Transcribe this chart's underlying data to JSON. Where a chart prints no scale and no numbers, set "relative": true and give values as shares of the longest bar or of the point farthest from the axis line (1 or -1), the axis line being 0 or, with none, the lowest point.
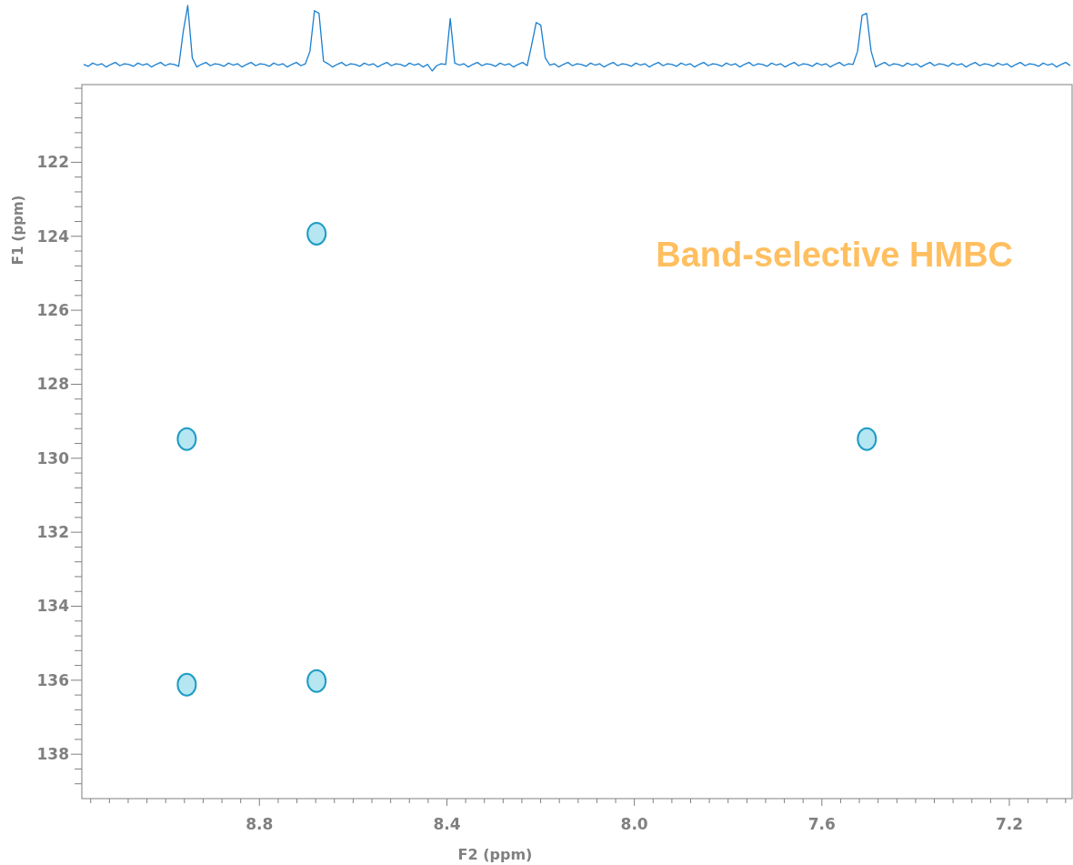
{
  "chart_data": [
    {
      "type": "line",
      "relative": true,
      "marker": "none",
      "line_style": "solid",
      "categories": [
        null,
        null,
        null,
        null,
        null,
        null,
        null,
        null,
        null,
        null,
        null,
        null,
        null,
        null,
        null,
        null,
        null,
        null,
        null,
        null,
        null,
        null,
        null,
        null,
        null,
        null,
        null,
        null,
        null,
        null,
        null,
        null,
        null,
        null,
        null,
        null,
        null,
        null,
        null,
        null,
        null,
        null,
        null,
        null,
        null,
        null,
        null,
        null,
        null,
        null,
        null,
        null,
        null,
        null,
        null,
        null,
        null,
        null,
        null,
        null,
        null,
        null,
        null,
        null,
        null,
        null,
        null,
        null,
        null,
        null,
        null,
        null,
        null,
        null,
        null,
        null,
        null,
        null,
        null,
        null,
        null,
        null,
        null,
        null,
        null,
        null,
        null,
        null,
        null,
        null,
        null,
        null,
        null,
        null,
        null,
        null,
        null,
        null,
        null,
        null,
        null,
        null,
        null,
        null,
        null,
        null,
        null,
        null,
        null,
        null,
        null,
        null,
        null,
        null,
        null,
        null,
        null,
        null,
        null,
        null,
        null,
        null,
        null,
        null,
        null,
        null,
        null,
        null,
        null,
        null,
        null,
        null,
        null,
        null,
        null,
        null,
        null,
        null,
        null,
        null,
        null,
        null,
        null,
        null,
        null,
        null,
        null,
        null,
        null,
        null,
        null,
        null,
        null,
        null,
        null,
        null,
        null,
        null,
        null,
        null,
        null,
        null,
        null,
        null,
        null,
        null,
        null,
        null,
        null,
        null,
        null,
        null,
        null,
        null,
        null,
        null,
        null,
        null,
        null,
        null,
        null,
        null,
        null,
        null,
        null,
        null,
        null,
        null,
        null,
        null,
        null,
        null,
        null,
        null,
        null,
        null,
        null,
        null,
        null,
        null,
        null,
        null,
        null,
        null,
        null,
        null,
        null,
        null,
        null,
        null,
        null,
        null,
        null,
        null,
        null,
        null,
        null,
        null,
        null
      ],
      "series": [
        {
          "color": "#1a7fd0",
          "values": [
            0.1,
            0.07,
            0.12,
            0.09,
            0.11,
            0.06,
            0.1,
            0.13,
            0.08,
            0.11,
            0.1,
            0.07,
            0.12,
            0.09,
            0.11,
            0.06,
            0.1,
            0.13,
            0.08,
            0.11,
            0.1,
            0.07,
            0.6,
            1.0,
            0.2,
            0.06,
            0.1,
            0.13,
            0.08,
            0.11,
            0.1,
            0.07,
            0.12,
            0.09,
            0.11,
            0.06,
            0.1,
            0.13,
            0.08,
            0.11,
            0.1,
            0.07,
            0.12,
            0.09,
            0.11,
            0.06,
            0.1,
            0.13,
            0.08,
            0.11,
            0.3,
            0.92,
            0.88,
            0.15,
            0.11,
            0.06,
            0.1,
            0.13,
            0.08,
            0.11,
            0.1,
            0.07,
            0.12,
            0.09,
            0.11,
            0.06,
            0.1,
            0.13,
            0.08,
            0.11,
            0.1,
            0.07,
            0.12,
            0.09,
            0.11,
            0.06,
            0.1,
            0,
            0.08,
            0.11,
            0.1,
            0.8,
            0.12,
            0.09,
            0.11,
            0.06,
            0.1,
            0.13,
            0.08,
            0.11,
            0.1,
            0.07,
            0.12,
            0.09,
            0.11,
            0.06,
            0.1,
            0.13,
            0.08,
            0.4,
            0.74,
            0.7,
            0.2,
            0.09,
            0.11,
            0.06,
            0.1,
            0.13,
            0.08,
            0.11,
            0.1,
            0.07,
            0.12,
            0.09,
            0.11,
            0.06,
            0.1,
            0.13,
            0.08,
            0.11,
            0.1,
            0.07,
            0.12,
            0.09,
            0.11,
            0.06,
            0.1,
            0.13,
            0.08,
            0.11,
            0.1,
            0.07,
            0.12,
            0.09,
            0.11,
            0.06,
            0.1,
            0.13,
            0.08,
            0.11,
            0.1,
            0.07,
            0.12,
            0.09,
            0.11,
            0.06,
            0.1,
            0.13,
            0.08,
            0.11,
            0.1,
            0.07,
            0.12,
            0.09,
            0.11,
            0.06,
            0.1,
            0.13,
            0.08,
            0.11,
            0.1,
            0.07,
            0.12,
            0.09,
            0.11,
            0.06,
            0.1,
            0.13,
            0.08,
            0.11,
            0.1,
            0.3,
            0.85,
            0.88,
            0.3,
            0.06,
            0.1,
            0.13,
            0.08,
            0.11,
            0.1,
            0.07,
            0.12,
            0.09,
            0.11,
            0.06,
            0.1,
            0.13,
            0.08,
            0.11,
            0.1,
            0.07,
            0.12,
            0.09,
            0.11,
            0.06,
            0.1,
            0.13,
            0.08,
            0.11,
            0.1,
            0.07,
            0.12,
            0.09,
            0.11,
            0.06,
            0.1,
            0.13,
            0.08,
            0.11,
            0.1,
            0.07,
            0.12,
            0.09,
            0.11,
            0.06,
            0.1,
            0.13,
            0.08
          ]
        }
      ]
    },
    {
      "type": "scatter",
      "xlabel": "F2 (ppm)",
      "ylabel": "F1 (ppm)",
      "xlim": [
        9.175,
        7.07
      ],
      "ylim": [
        139.2,
        119.9
      ],
      "marker": "circle",
      "grid": false,
      "annotations": [
        "Band-selective HMBC"
      ],
      "xticks": [
        {
          "value": 9.16,
          "label": null
        },
        {
          "value": 9.12,
          "label": null
        },
        {
          "value": 9.08,
          "label": null
        },
        {
          "value": 9.04,
          "label": null
        },
        {
          "value": 9.0,
          "label": null
        },
        {
          "value": 8.96,
          "label": null
        },
        {
          "value": 8.92,
          "label": null
        },
        {
          "value": 8.88,
          "label": null
        },
        {
          "value": 8.84,
          "label": null
        },
        8.8,
        {
          "value": 8.76,
          "label": null
        },
        {
          "value": 8.72,
          "label": null
        },
        {
          "value": 8.68,
          "label": null
        },
        {
          "value": 8.64,
          "label": null
        },
        {
          "value": 8.6,
          "label": null
        },
        {
          "value": 8.56,
          "label": null
        },
        {
          "value": 8.52,
          "label": null
        },
        {
          "value": 8.48,
          "label": null
        },
        {
          "value": 8.44,
          "label": null
        },
        8.4,
        {
          "value": 8.36,
          "label": null
        },
        {
          "value": 8.32,
          "label": null
        },
        {
          "value": 8.28,
          "label": null
        },
        {
          "value": 8.24,
          "label": null
        },
        {
          "value": 8.2,
          "label": null
        },
        {
          "value": 8.16,
          "label": null
        },
        {
          "value": 8.12,
          "label": null
        },
        {
          "value": 8.08,
          "label": null
        },
        {
          "value": 8.04,
          "label": null
        },
        {
          "value": 8,
          "label": "8.0"
        },
        {
          "value": 7.96,
          "label": null
        },
        {
          "value": 7.92,
          "label": null
        },
        {
          "value": 7.88,
          "label": null
        },
        {
          "value": 7.84,
          "label": null
        },
        {
          "value": 7.8,
          "label": null
        },
        {
          "value": 7.76,
          "label": null
        },
        {
          "value": 7.72,
          "label": null
        },
        {
          "value": 7.68,
          "label": null
        },
        {
          "value": 7.64,
          "label": null
        },
        7.6,
        {
          "value": 7.56,
          "label": null
        },
        {
          "value": 7.52,
          "label": null
        },
        {
          "value": 7.48,
          "label": null
        },
        {
          "value": 7.44,
          "label": null
        },
        {
          "value": 7.4,
          "label": null
        },
        {
          "value": 7.36,
          "label": null
        },
        {
          "value": 7.32,
          "label": null
        },
        {
          "value": 7.28,
          "label": null
        },
        {
          "value": 7.24,
          "label": null
        },
        7.2,
        {
          "value": 7.16,
          "label": null
        },
        {
          "value": 7.12,
          "label": null
        },
        {
          "value": 7.08,
          "label": null
        }
      ],
      "yticks": [
        {
          "value": 120,
          "label": null
        },
        {
          "value": 120.4,
          "label": null
        },
        {
          "value": 120.8,
          "label": null
        },
        {
          "value": 121.2,
          "label": null
        },
        {
          "value": 121.6,
          "label": null
        },
        122,
        {
          "value": 122.4,
          "label": null
        },
        {
          "value": 122.8,
          "label": null
        },
        {
          "value": 123.2,
          "label": null
        },
        {
          "value": 123.6,
          "label": null
        },
        124,
        {
          "value": 124.4,
          "label": null
        },
        {
          "value": 124.8,
          "label": null
        },
        {
          "value": 125.2,
          "label": null
        },
        {
          "value": 125.6,
          "label": null
        },
        126,
        {
          "value": 126.4,
          "label": null
        },
        {
          "value": 126.8,
          "label": null
        },
        {
          "value": 127.2,
          "label": null
        },
        {
          "value": 127.6,
          "label": null
        },
        128,
        {
          "value": 128.4,
          "label": null
        },
        {
          "value": 128.8,
          "label": null
        },
        {
          "value": 129.2,
          "label": null
        },
        {
          "value": 129.6,
          "label": null
        },
        130,
        {
          "value": 130.4,
          "label": null
        },
        {
          "value": 130.8,
          "label": null
        },
        {
          "value": 131.2,
          "label": null
        },
        {
          "value": 131.6,
          "label": null
        },
        132,
        {
          "value": 132.4,
          "label": null
        },
        {
          "value": 132.8,
          "label": null
        },
        {
          "value": 133.2,
          "label": null
        },
        {
          "value": 133.6,
          "label": null
        },
        134,
        {
          "value": 134.4,
          "label": null
        },
        {
          "value": 134.8,
          "label": null
        },
        {
          "value": 135.2,
          "label": null
        },
        {
          "value": 135.6,
          "label": null
        },
        136,
        {
          "value": 136.4,
          "label": null
        },
        {
          "value": 136.8,
          "label": null
        },
        {
          "value": 137.2,
          "label": null
        },
        {
          "value": 137.6,
          "label": null
        },
        138,
        {
          "value": 138.4,
          "label": null
        },
        {
          "value": 138.8,
          "label": null
        }
      ],
      "series": [
        {
          "color": "#1e9cc4",
          "x": [
            8.955,
            8.678,
            8.678,
            8.955,
            7.504
          ],
          "values": [
            129.48,
            123.93,
            136.02,
            136.12,
            129.48
          ]
        }
      ]
    }
  ]
}
